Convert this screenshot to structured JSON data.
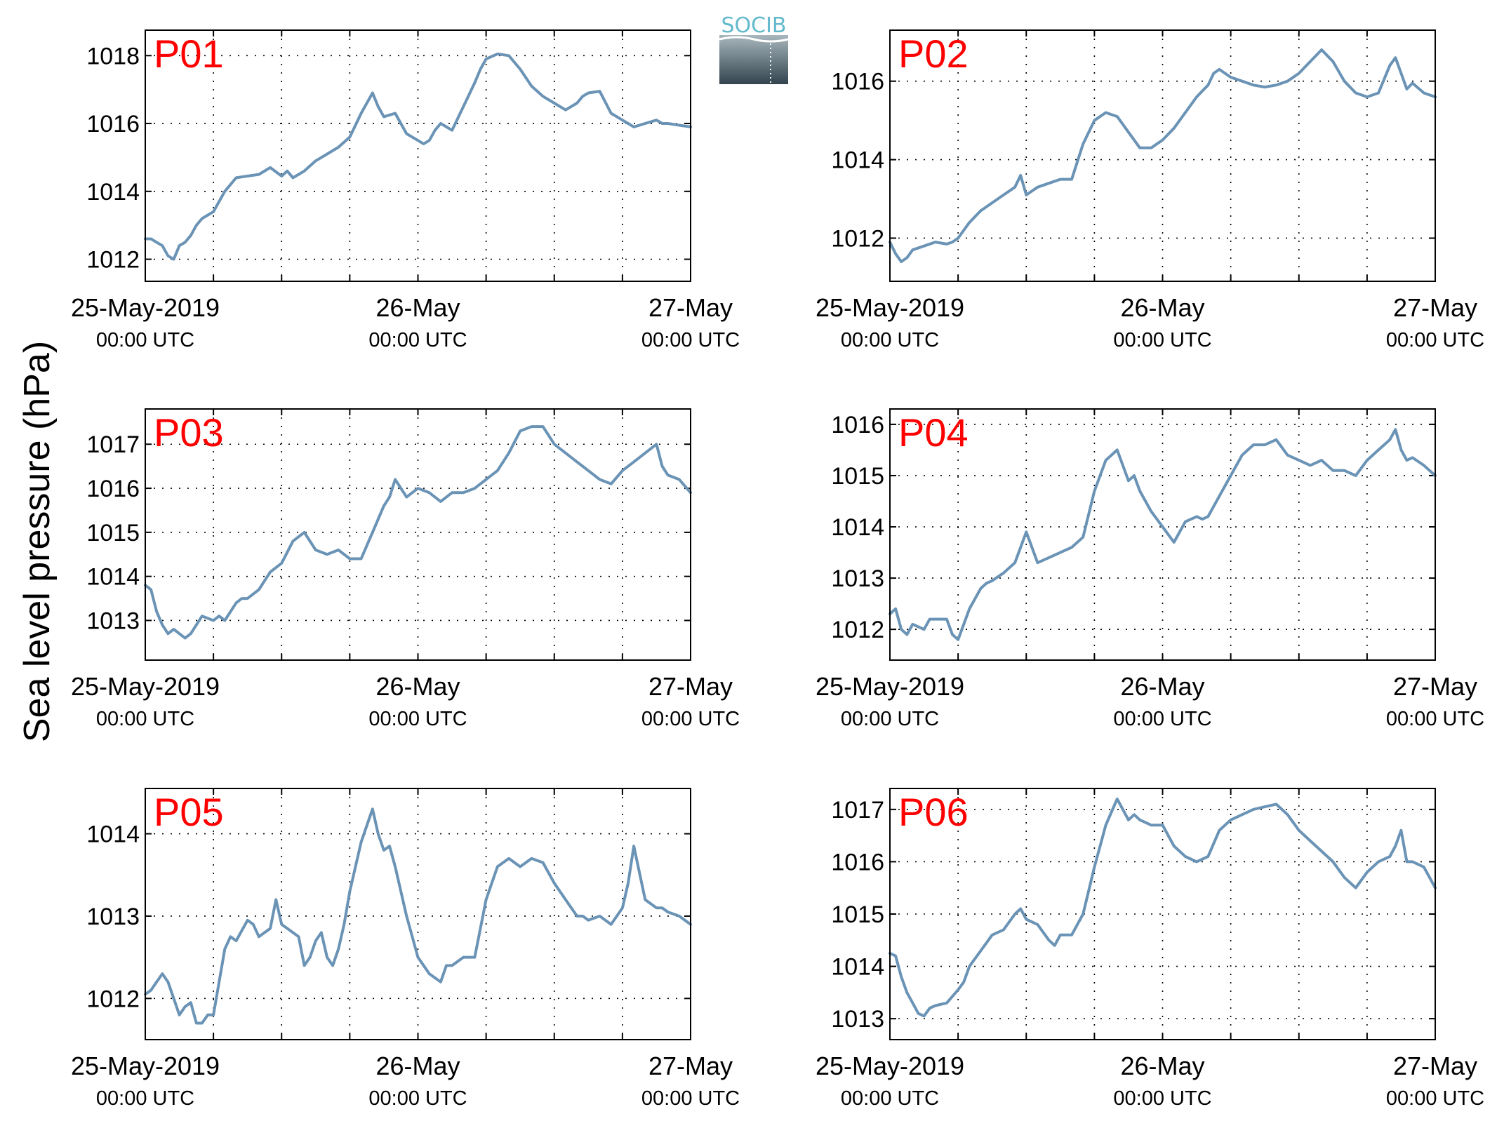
{
  "figure": {
    "ylabel": "Sea level pressure (hPa)",
    "logo_text": "SOCIB",
    "line_color": "#6a93b5",
    "label_color": "#ff0000"
  },
  "chart_data": [
    {
      "type": "line",
      "label": "P01",
      "x_unit": "hours since 25-May-2019 00:00 UTC",
      "xlim": [
        0,
        48
      ],
      "xticks": [
        0,
        24,
        48
      ],
      "xtick_dates": [
        "25-May-2019",
        "26-May",
        "27-May"
      ],
      "xtick_times": [
        "00:00 UTC",
        "00:00 UTC",
        "00:00 UTC"
      ],
      "xgrid": [
        6,
        12,
        18,
        24,
        30,
        36,
        42
      ],
      "ylim": [
        1011.35,
        1018.75
      ],
      "yticks": [
        1012,
        1014,
        1016,
        1018
      ],
      "grid": true,
      "x": [
        0,
        0.5,
        1,
        1.5,
        2,
        2.5,
        3,
        3.5,
        4,
        4.5,
        5,
        6,
        7,
        8,
        9,
        10,
        11,
        12,
        12.5,
        13,
        13.5,
        14,
        15,
        16,
        17,
        18,
        19,
        20,
        20.5,
        21,
        22,
        23,
        24,
        24.5,
        25,
        25.5,
        26,
        27,
        28,
        29,
        29.5,
        30,
        31,
        32,
        33,
        34,
        35,
        36,
        37,
        38,
        38.5,
        39,
        40,
        41,
        42,
        42.5,
        43,
        44,
        45,
        45.5,
        46,
        47,
        48
      ],
      "y": [
        1012.6,
        1012.6,
        1012.5,
        1012.4,
        1012.1,
        1012.0,
        1012.4,
        1012.5,
        1012.7,
        1013.0,
        1013.2,
        1013.4,
        1014.0,
        1014.4,
        1014.45,
        1014.5,
        1014.7,
        1014.45,
        1014.6,
        1014.4,
        1014.5,
        1014.6,
        1014.9,
        1015.1,
        1015.3,
        1015.6,
        1016.3,
        1016.9,
        1016.5,
        1016.2,
        1016.3,
        1015.7,
        1015.5,
        1015.4,
        1015.5,
        1015.8,
        1016.0,
        1015.8,
        1016.5,
        1017.2,
        1017.6,
        1017.9,
        1018.05,
        1018.0,
        1017.6,
        1017.1,
        1016.8,
        1016.6,
        1016.4,
        1016.6,
        1016.8,
        1016.9,
        1016.95,
        1016.3,
        1016.1,
        1016.0,
        1015.9,
        1016.0,
        1016.1,
        1016.0,
        1016.0,
        1015.95,
        1015.9
      ]
    },
    {
      "type": "line",
      "label": "P02",
      "x_unit": "hours since 25-May-2019 00:00 UTC",
      "xlim": [
        0,
        48
      ],
      "xticks": [
        0,
        24,
        48
      ],
      "xtick_dates": [
        "25-May-2019",
        "26-May",
        "27-May"
      ],
      "xtick_times": [
        "00:00 UTC",
        "00:00 UTC",
        "00:00 UTC"
      ],
      "xgrid": [
        6,
        12,
        18,
        24,
        30,
        36,
        42
      ],
      "ylim": [
        1010.9,
        1017.3
      ],
      "yticks": [
        1012,
        1014,
        1016
      ],
      "grid": true,
      "x": [
        0,
        0.5,
        1,
        1.5,
        2,
        3,
        4,
        5,
        5.5,
        6,
        7,
        8,
        9,
        10,
        11,
        11.5,
        12,
        13,
        14,
        15,
        16,
        17,
        18,
        19,
        20,
        21,
        21.5,
        22,
        23,
        24,
        25,
        26,
        27,
        28,
        28.5,
        29,
        30,
        31,
        32,
        33,
        34,
        35,
        36,
        37,
        38,
        39,
        40,
        41,
        42,
        43,
        44,
        44.5,
        45,
        45.5,
        46,
        47,
        48
      ],
      "y": [
        1011.9,
        1011.6,
        1011.4,
        1011.5,
        1011.7,
        1011.8,
        1011.9,
        1011.85,
        1011.9,
        1012.0,
        1012.4,
        1012.7,
        1012.9,
        1013.1,
        1013.3,
        1013.6,
        1013.1,
        1013.3,
        1013.4,
        1013.5,
        1013.5,
        1014.4,
        1015.0,
        1015.2,
        1015.1,
        1014.7,
        1014.5,
        1014.3,
        1014.3,
        1014.5,
        1014.8,
        1015.2,
        1015.6,
        1015.9,
        1016.2,
        1016.3,
        1016.1,
        1016.0,
        1015.9,
        1015.85,
        1015.9,
        1016.0,
        1016.2,
        1016.5,
        1016.8,
        1016.5,
        1016.0,
        1015.7,
        1015.6,
        1015.7,
        1016.4,
        1016.6,
        1016.2,
        1015.8,
        1015.95,
        1015.7,
        1015.6
      ]
    },
    {
      "type": "line",
      "label": "P03",
      "x_unit": "hours since 25-May-2019 00:00 UTC",
      "xlim": [
        0,
        48
      ],
      "xticks": [
        0,
        24,
        48
      ],
      "xtick_dates": [
        "25-May-2019",
        "26-May",
        "27-May"
      ],
      "xtick_times": [
        "00:00 UTC",
        "00:00 UTC",
        "00:00 UTC"
      ],
      "xgrid": [
        6,
        12,
        18,
        24,
        30,
        36,
        42
      ],
      "ylim": [
        1012.1,
        1017.8
      ],
      "yticks": [
        1013,
        1014,
        1015,
        1016,
        1017
      ],
      "grid": true,
      "x": [
        0,
        0.5,
        1,
        1.5,
        2,
        2.5,
        3,
        3.5,
        4,
        5,
        6,
        6.5,
        7,
        8,
        8.5,
        9,
        10,
        10.5,
        11,
        12,
        13,
        14,
        15,
        16,
        17,
        18,
        19,
        20,
        21,
        21.5,
        22,
        23,
        24,
        25,
        26,
        27,
        28,
        29,
        30,
        30.5,
        31,
        32,
        33,
        34,
        35,
        36,
        37,
        38,
        38.5,
        39,
        40,
        41,
        42,
        43,
        44,
        45,
        45.5,
        46,
        47,
        48
      ],
      "y": [
        1013.8,
        1013.7,
        1013.2,
        1012.9,
        1012.7,
        1012.8,
        1012.7,
        1012.6,
        1012.7,
        1013.1,
        1013.0,
        1013.1,
        1013.0,
        1013.4,
        1013.5,
        1013.5,
        1013.7,
        1013.9,
        1014.1,
        1014.3,
        1014.8,
        1015.0,
        1014.6,
        1014.5,
        1014.6,
        1014.4,
        1014.4,
        1015.0,
        1015.6,
        1015.8,
        1016.2,
        1015.8,
        1016.0,
        1015.9,
        1015.7,
        1015.9,
        1015.9,
        1016.0,
        1016.2,
        1016.3,
        1016.4,
        1016.8,
        1017.3,
        1017.4,
        1017.4,
        1017.0,
        1016.8,
        1016.6,
        1016.5,
        1016.4,
        1016.2,
        1016.1,
        1016.4,
        1016.6,
        1016.8,
        1017.0,
        1016.5,
        1016.3,
        1016.2,
        1015.9
      ]
    },
    {
      "type": "line",
      "label": "P04",
      "x_unit": "hours since 25-May-2019 00:00 UTC",
      "xlim": [
        0,
        48
      ],
      "xticks": [
        0,
        24,
        48
      ],
      "xtick_dates": [
        "25-May-2019",
        "26-May",
        "27-May"
      ],
      "xtick_times": [
        "00:00 UTC",
        "00:00 UTC",
        "00:00 UTC"
      ],
      "xgrid": [
        6,
        12,
        18,
        24,
        30,
        36,
        42
      ],
      "ylim": [
        1011.4,
        1016.3
      ],
      "yticks": [
        1012,
        1013,
        1014,
        1015,
        1016
      ],
      "grid": true,
      "x": [
        0,
        0.5,
        1,
        1.5,
        2,
        3,
        3.5,
        4,
        5,
        5.5,
        6,
        6.5,
        7,
        8,
        8.5,
        9,
        10,
        11,
        11.5,
        12,
        13,
        14,
        15,
        16,
        17,
        18,
        19,
        20,
        21,
        21.5,
        22,
        23,
        24,
        25,
        26,
        27,
        27.5,
        28,
        29,
        30,
        31,
        32,
        33,
        34,
        35,
        36,
        37,
        38,
        39,
        40,
        41,
        42,
        43,
        44,
        44.5,
        45,
        45.5,
        46,
        47,
        48
      ],
      "y": [
        1012.3,
        1012.4,
        1012.0,
        1011.9,
        1012.1,
        1012.0,
        1012.2,
        1012.2,
        1012.2,
        1011.9,
        1011.8,
        1012.1,
        1012.4,
        1012.8,
        1012.9,
        1012.95,
        1013.1,
        1013.3,
        1013.6,
        1013.9,
        1013.3,
        1013.4,
        1013.5,
        1013.6,
        1013.8,
        1014.7,
        1015.3,
        1015.5,
        1014.9,
        1015.0,
        1014.7,
        1014.3,
        1014.0,
        1013.7,
        1014.1,
        1014.2,
        1014.15,
        1014.2,
        1014.6,
        1015.0,
        1015.4,
        1015.6,
        1015.6,
        1015.7,
        1015.4,
        1015.3,
        1015.2,
        1015.3,
        1015.1,
        1015.1,
        1015.0,
        1015.3,
        1015.5,
        1015.7,
        1015.9,
        1015.5,
        1015.3,
        1015.35,
        1015.2,
        1015.0
      ]
    },
    {
      "type": "line",
      "label": "P05",
      "x_unit": "hours since 25-May-2019 00:00 UTC",
      "xlim": [
        0,
        48
      ],
      "xticks": [
        0,
        24,
        48
      ],
      "xtick_dates": [
        "25-May-2019",
        "26-May",
        "27-May"
      ],
      "xtick_times": [
        "00:00 UTC",
        "00:00 UTC",
        "00:00 UTC"
      ],
      "xgrid": [
        6,
        12,
        18,
        24,
        30,
        36,
        42
      ],
      "ylim": [
        1011.5,
        1014.55
      ],
      "yticks": [
        1012,
        1013,
        1014
      ],
      "grid": true,
      "x": [
        0,
        0.5,
        1,
        1.5,
        2,
        2.5,
        3,
        3.5,
        4,
        4.5,
        5,
        5.5,
        6,
        6.5,
        7,
        7.5,
        8,
        9,
        9.5,
        10,
        10.5,
        11,
        11.5,
        12,
        12.5,
        13,
        13.5,
        14,
        14.5,
        15,
        15.5,
        16,
        16.5,
        17,
        17.5,
        18,
        19,
        20,
        20.5,
        21,
        21.5,
        22,
        22.5,
        23,
        24,
        25,
        26,
        26.5,
        27,
        28,
        29,
        30,
        31,
        32,
        33,
        34,
        35,
        36,
        37,
        38,
        38.5,
        39,
        40,
        41,
        42,
        42.5,
        43,
        44,
        45,
        45.5,
        46,
        47,
        48
      ],
      "y": [
        1012.05,
        1012.1,
        1012.2,
        1012.3,
        1012.2,
        1012.0,
        1011.8,
        1011.9,
        1011.95,
        1011.7,
        1011.7,
        1011.8,
        1011.8,
        1012.2,
        1012.6,
        1012.75,
        1012.7,
        1012.95,
        1012.9,
        1012.75,
        1012.8,
        1012.85,
        1013.2,
        1012.9,
        1012.85,
        1012.8,
        1012.75,
        1012.4,
        1012.5,
        1012.7,
        1012.8,
        1012.5,
        1012.4,
        1012.6,
        1012.9,
        1013.3,
        1013.9,
        1014.3,
        1014.0,
        1013.8,
        1013.85,
        1013.6,
        1013.3,
        1013.0,
        1012.5,
        1012.3,
        1012.2,
        1012.4,
        1012.4,
        1012.5,
        1012.5,
        1013.2,
        1013.6,
        1013.7,
        1013.6,
        1013.7,
        1013.65,
        1013.4,
        1013.2,
        1013.0,
        1013.0,
        1012.95,
        1013.0,
        1012.9,
        1013.1,
        1013.4,
        1013.85,
        1013.2,
        1013.1,
        1013.1,
        1013.05,
        1013.0,
        1012.9
      ]
    },
    {
      "type": "line",
      "label": "P06",
      "x_unit": "hours since 25-May-2019 00:00 UTC",
      "xlim": [
        0,
        48
      ],
      "xticks": [
        0,
        24,
        48
      ],
      "xtick_dates": [
        "25-May-2019",
        "26-May",
        "27-May"
      ],
      "xtick_times": [
        "00:00 UTC",
        "00:00 UTC",
        "00:00 UTC"
      ],
      "xgrid": [
        6,
        12,
        18,
        24,
        30,
        36,
        42
      ],
      "ylim": [
        1012.6,
        1017.4
      ],
      "yticks": [
        1013,
        1014,
        1015,
        1016,
        1017
      ],
      "grid": true,
      "x": [
        0,
        0.5,
        1,
        1.5,
        2,
        2.5,
        3,
        3.5,
        4,
        5,
        6,
        6.5,
        7,
        8,
        9,
        10,
        11,
        11.5,
        12,
        13,
        14,
        14.5,
        15,
        16,
        17,
        18,
        19,
        20,
        21,
        21.5,
        22,
        23,
        24,
        25,
        26,
        27,
        28,
        29,
        30,
        31,
        32,
        33,
        34,
        35,
        36,
        37,
        38,
        39,
        40,
        41,
        42,
        43,
        44,
        44.5,
        45,
        45.5,
        46,
        47,
        48
      ],
      "y": [
        1014.25,
        1014.2,
        1013.8,
        1013.5,
        1013.3,
        1013.1,
        1013.05,
        1013.2,
        1013.25,
        1013.3,
        1013.55,
        1013.7,
        1014.0,
        1014.3,
        1014.6,
        1014.7,
        1015.0,
        1015.1,
        1014.9,
        1014.8,
        1014.5,
        1014.4,
        1014.6,
        1014.6,
        1015.0,
        1015.9,
        1016.7,
        1017.2,
        1016.8,
        1016.9,
        1016.8,
        1016.7,
        1016.7,
        1016.3,
        1016.1,
        1016.0,
        1016.1,
        1016.6,
        1016.8,
        1016.9,
        1017.0,
        1017.05,
        1017.1,
        1016.9,
        1016.6,
        1016.4,
        1016.2,
        1016.0,
        1015.7,
        1015.5,
        1015.8,
        1016.0,
        1016.1,
        1016.3,
        1016.6,
        1016.0,
        1016.0,
        1015.9,
        1015.5
      ]
    }
  ]
}
